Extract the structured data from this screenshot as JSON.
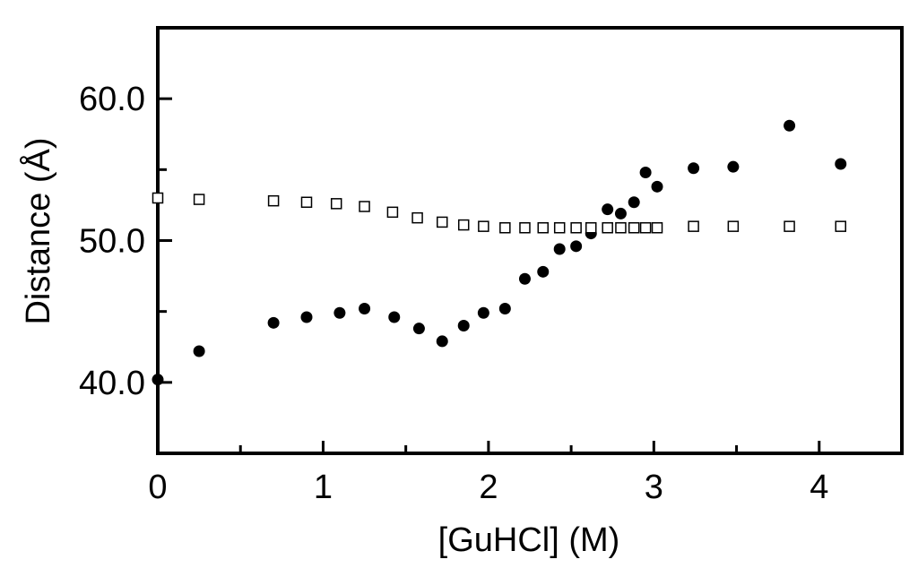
{
  "chart_data": {
    "type": "scatter",
    "title": "",
    "xlabel": "[GuHCl] (M)",
    "ylabel": "Distance (Å)",
    "xlim": [
      0,
      4.5
    ],
    "ylim": [
      35,
      65
    ],
    "x_ticks": [
      {
        "value": 0,
        "label": "0"
      },
      {
        "value": 1,
        "label": "1"
      },
      {
        "value": 2,
        "label": "2"
      },
      {
        "value": 3,
        "label": "3"
      },
      {
        "value": 4,
        "label": "4"
      }
    ],
    "x_minor_ticks": [
      0.5,
      1.5,
      2.5,
      3.5
    ],
    "y_ticks": [
      {
        "value": 40,
        "label": "40.0"
      },
      {
        "value": 50,
        "label": "50.0"
      },
      {
        "value": 60,
        "label": "60.0"
      }
    ],
    "y_minor_ticks": [
      45,
      55
    ],
    "grid": false,
    "legend": "none",
    "series": [
      {
        "marker": "filled-circle",
        "color": "#000000",
        "points": [
          [
            0.0,
            40.2
          ],
          [
            0.25,
            42.2
          ],
          [
            0.7,
            44.2
          ],
          [
            0.9,
            44.6
          ],
          [
            1.1,
            44.9
          ],
          [
            1.25,
            45.2
          ],
          [
            1.43,
            44.6
          ],
          [
            1.58,
            43.8
          ],
          [
            1.72,
            42.9
          ],
          [
            1.85,
            44.0
          ],
          [
            1.97,
            44.9
          ],
          [
            2.1,
            45.2
          ],
          [
            2.22,
            47.3
          ],
          [
            2.33,
            47.8
          ],
          [
            2.43,
            49.4
          ],
          [
            2.53,
            49.6
          ],
          [
            2.62,
            50.5
          ],
          [
            2.72,
            52.2
          ],
          [
            2.8,
            51.9
          ],
          [
            2.88,
            52.7
          ],
          [
            2.95,
            54.8
          ],
          [
            3.02,
            53.8
          ],
          [
            3.24,
            55.1
          ],
          [
            3.48,
            55.2
          ],
          [
            3.82,
            58.1
          ],
          [
            4.13,
            55.4
          ]
        ]
      },
      {
        "marker": "open-square",
        "color": "#000000",
        "points": [
          [
            0.0,
            53.0
          ],
          [
            0.25,
            52.9
          ],
          [
            0.7,
            52.8
          ],
          [
            0.9,
            52.7
          ],
          [
            1.08,
            52.6
          ],
          [
            1.25,
            52.4
          ],
          [
            1.42,
            52.0
          ],
          [
            1.57,
            51.6
          ],
          [
            1.72,
            51.3
          ],
          [
            1.85,
            51.1
          ],
          [
            1.97,
            51.0
          ],
          [
            2.1,
            50.9
          ],
          [
            2.22,
            50.9
          ],
          [
            2.33,
            50.9
          ],
          [
            2.43,
            50.9
          ],
          [
            2.53,
            50.9
          ],
          [
            2.62,
            50.9
          ],
          [
            2.72,
            50.9
          ],
          [
            2.8,
            50.9
          ],
          [
            2.88,
            50.9
          ],
          [
            2.95,
            50.9
          ],
          [
            3.02,
            50.9
          ],
          [
            3.24,
            51.0
          ],
          [
            3.48,
            51.0
          ],
          [
            3.82,
            51.0
          ],
          [
            4.13,
            51.0
          ]
        ]
      }
    ]
  }
}
